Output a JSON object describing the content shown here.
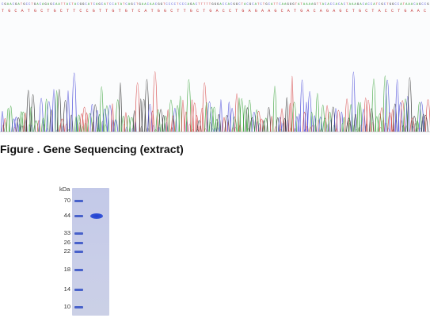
{
  "figure_caption": "Figure . Gene Sequencing (extract)",
  "gel": {
    "unit_label": "kDa",
    "ladder_kda": [
      "70",
      "44",
      "33",
      "26",
      "22",
      "18",
      "14",
      "10"
    ],
    "sample_band_kda": 44,
    "gel_color": "#c6cbe8",
    "band_color": "#2b4bd4"
  },
  "chromatogram": {
    "base_colors": {
      "A": "#2e9e2e",
      "C": "#3a3ad6",
      "G": "#222222",
      "T": "#d43a3a"
    }
  }
}
